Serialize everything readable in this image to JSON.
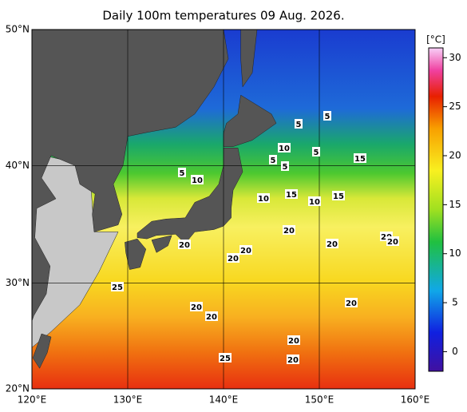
{
  "chart_data": {
    "type": "map",
    "title": "Daily 100m temperatures 09 Aug. 2026.",
    "xlim": [
      120,
      160
    ],
    "ylim": [
      20,
      50
    ],
    "xticks": [
      {
        "value": 120,
        "label": "120°E"
      },
      {
        "value": 130,
        "label": "130°E"
      },
      {
        "value": 140,
        "label": "140°E"
      },
      {
        "value": 150,
        "label": "150°E"
      },
      {
        "value": 160,
        "label": "160°E"
      }
    ],
    "yticks": [
      {
        "value": 20,
        "label": "20°N"
      },
      {
        "value": 30,
        "label": "30°N"
      },
      {
        "value": 40,
        "label": "40°N"
      },
      {
        "value": 50,
        "label": "50°N"
      }
    ],
    "grid": true,
    "colorbar": {
      "label": "[°C]",
      "lim": [
        -2,
        31
      ],
      "ticks": [
        0,
        5,
        10,
        15,
        20,
        25,
        30
      ]
    },
    "contour_labels": [
      5,
      5,
      5,
      5,
      5,
      10,
      5,
      10,
      10,
      15,
      10,
      15,
      15,
      20,
      20,
      20,
      20,
      20,
      20,
      20,
      25,
      20,
      20,
      20,
      20,
      25,
      20
    ]
  }
}
